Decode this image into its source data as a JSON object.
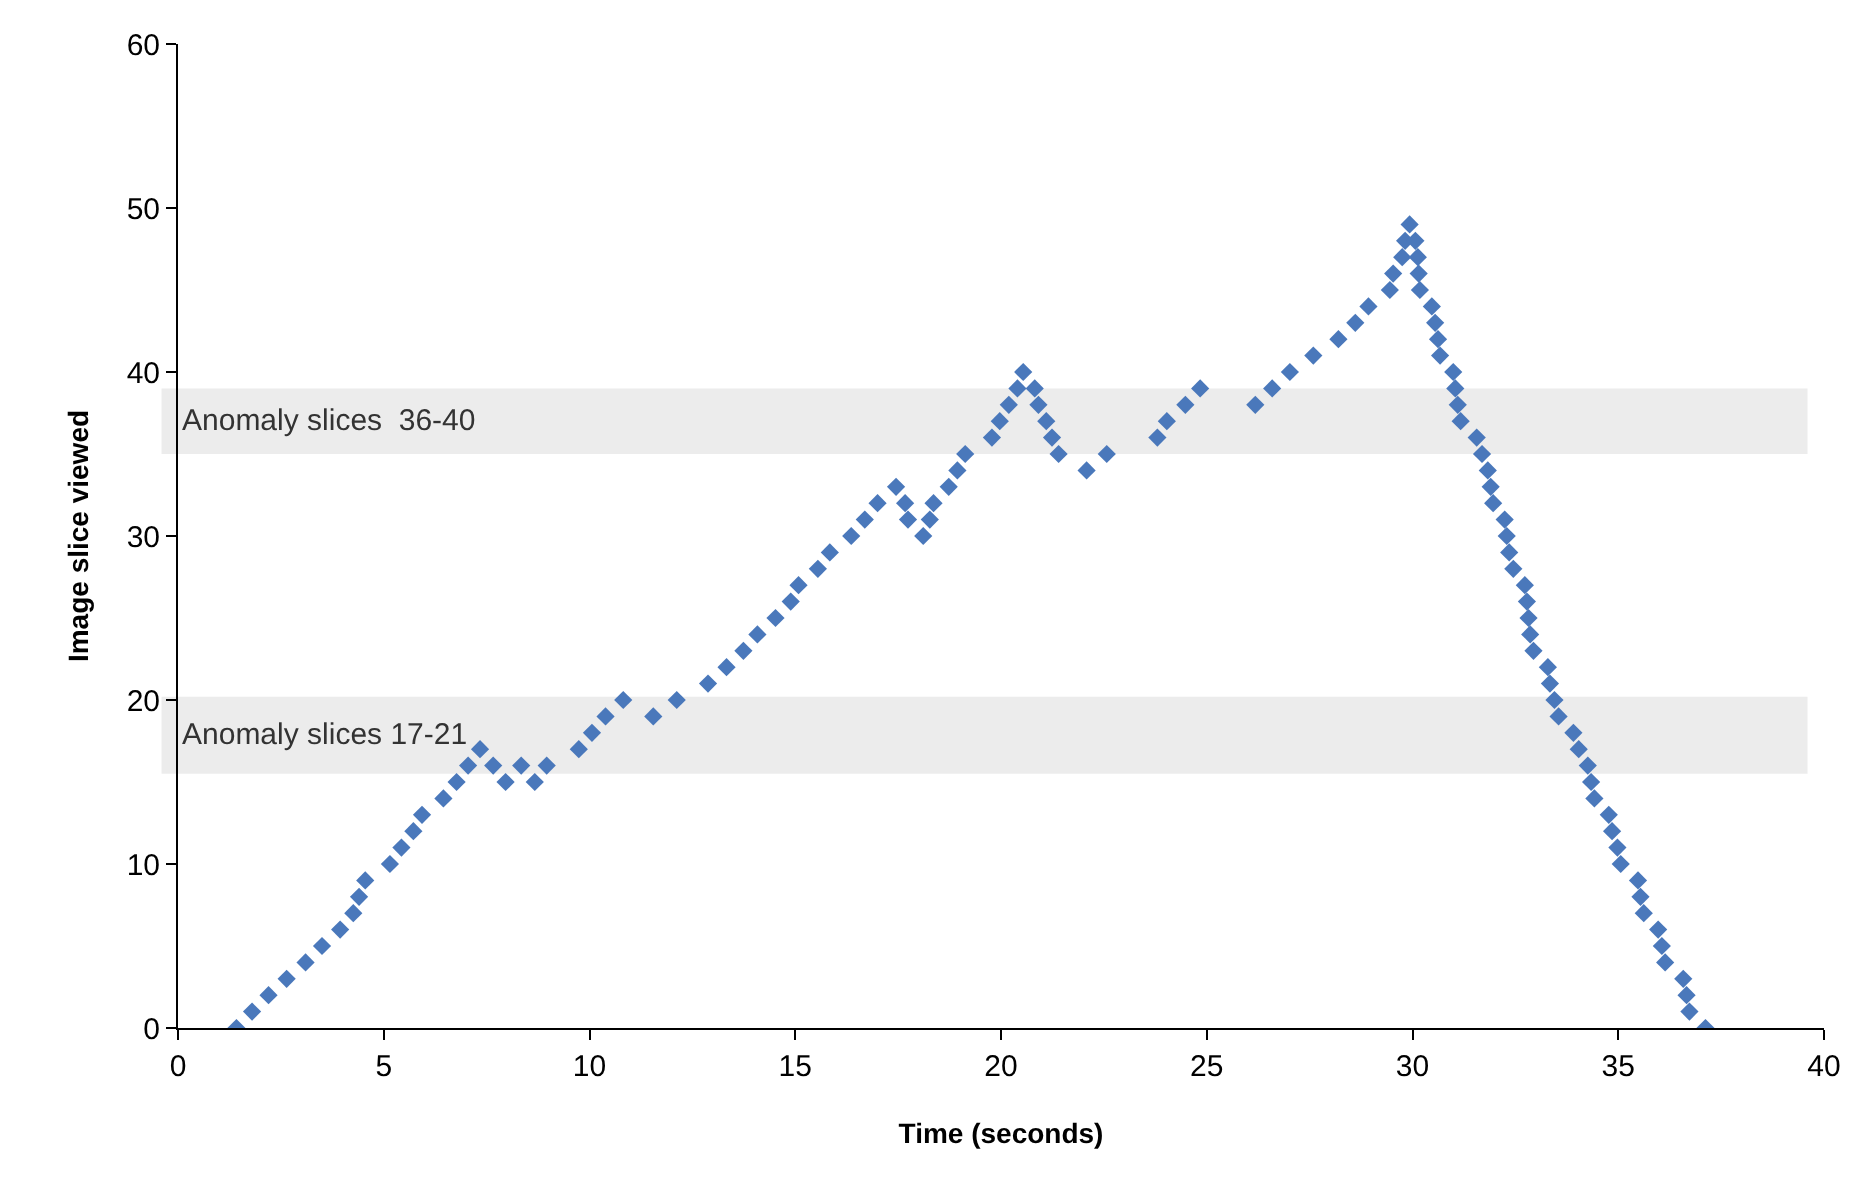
{
  "chart_data": {
    "type": "scatter",
    "xlabel": "Time (seconds)",
    "ylabel": "Image slice viewed",
    "xlim": [
      0,
      40
    ],
    "xticks": [
      0,
      5,
      10,
      15,
      20,
      25,
      30,
      35,
      40
    ],
    "ylim": [
      0,
      60
    ],
    "yticks": [
      0,
      10,
      20,
      30,
      40,
      50,
      60
    ],
    "marker": "diamond",
    "series": [
      {
        "color": "#4a78bb",
        "x": [
          1.42,
          1.8,
          2.2,
          2.64,
          3.1,
          3.5,
          3.94,
          4.26,
          4.4,
          4.55,
          5.15,
          5.43,
          5.72,
          5.93,
          6.45,
          6.77,
          7.05,
          7.34,
          7.66,
          7.96,
          8.34,
          8.67,
          8.96,
          9.74,
          10.06,
          10.39,
          10.82,
          11.55,
          12.12,
          12.88,
          13.33,
          13.74,
          14.08,
          14.52,
          14.89,
          15.08,
          15.55,
          15.84,
          16.36,
          16.69,
          17.0,
          17.45,
          17.67,
          17.74,
          18.11,
          18.27,
          18.36,
          18.73,
          18.94,
          19.13,
          19.78,
          19.97,
          20.19,
          20.4,
          20.54,
          20.82,
          20.91,
          21.1,
          21.24,
          21.4,
          22.08,
          22.57,
          23.8,
          24.03,
          24.48,
          24.84,
          26.18,
          26.59,
          27.02,
          27.59,
          28.2,
          28.61,
          28.93,
          29.45,
          29.53,
          29.75,
          29.82,
          29.93,
          30.07,
          30.13,
          30.15,
          30.18,
          30.47,
          30.55,
          30.62,
          30.67,
          30.99,
          31.04,
          31.1,
          31.17,
          31.56,
          31.69,
          31.83,
          31.9,
          31.96,
          32.24,
          32.29,
          32.35,
          32.45,
          32.73,
          32.78,
          32.82,
          32.86,
          32.94,
          33.29,
          33.34,
          33.45,
          33.55,
          33.91,
          34.04,
          34.26,
          34.34,
          34.42,
          34.77,
          34.85,
          34.98,
          35.06,
          35.48,
          35.54,
          35.62,
          35.97,
          36.06,
          36.14,
          36.58,
          36.66,
          36.73,
          37.12
        ],
        "values": [
          0,
          1,
          2,
          3,
          4,
          5,
          6,
          7,
          8,
          9,
          10,
          11,
          12,
          13,
          14,
          15,
          16,
          17,
          16,
          15,
          16,
          15,
          16,
          17,
          18,
          19,
          20,
          19,
          20,
          21,
          22,
          23,
          24,
          25,
          26,
          27,
          28,
          29,
          30,
          31,
          32,
          33,
          32,
          31,
          30,
          31,
          32,
          33,
          34,
          35,
          36,
          37,
          38,
          39,
          40,
          39,
          38,
          37,
          36,
          35,
          34,
          35,
          36,
          37,
          38,
          39,
          38,
          39,
          40,
          41,
          42,
          43,
          44,
          45,
          46,
          47,
          48,
          49,
          48,
          47,
          46,
          45,
          44,
          43,
          42,
          41,
          40,
          39,
          38,
          37,
          36,
          35,
          34,
          33,
          32,
          31,
          30,
          29,
          28,
          27,
          26,
          25,
          24,
          23,
          22,
          21,
          20,
          19,
          18,
          17,
          16,
          15,
          14,
          13,
          12,
          11,
          10,
          9,
          8,
          7,
          6,
          5,
          4,
          3,
          2,
          1,
          0
        ]
      }
    ],
    "bands": [
      {
        "axis": "y",
        "from": 35,
        "to": 39,
        "label": "Anomaly slices  36-40",
        "color": "#ececec"
      },
      {
        "axis": "y",
        "from": 15.5,
        "to": 20.2,
        "label": "Anomaly slices 17-21",
        "color": "#ececec"
      }
    ]
  }
}
